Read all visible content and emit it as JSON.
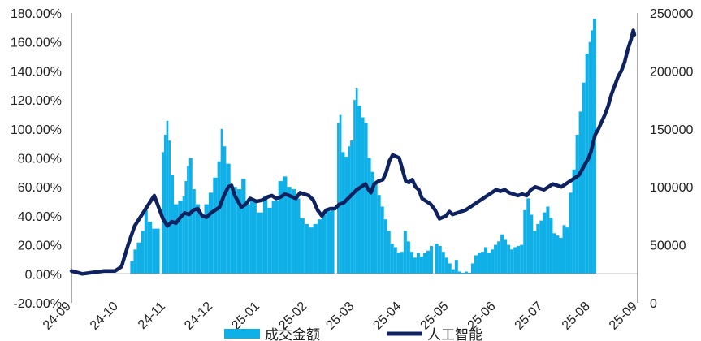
{
  "chart_data": {
    "type": "bar+line",
    "title": "",
    "left_axis": {
      "ylim": [
        -20,
        180
      ],
      "ticks": [
        "-20.00%",
        "0.00%",
        "20.00%",
        "40.00%",
        "60.00%",
        "80.00%",
        "100.00%",
        "120.00%",
        "140.00%",
        "160.00%",
        "180.00%"
      ]
    },
    "right_axis": {
      "ylim": [
        0,
        250000
      ],
      "ticks": [
        "0",
        "50000",
        "100000",
        "150000",
        "200000",
        "250000"
      ]
    },
    "x_ticks": [
      "24-09",
      "24-10",
      "24-11",
      "24-12",
      "25-01",
      "25-02",
      "25-03",
      "25-04",
      "25-05",
      "25-06",
      "25-07",
      "25-08",
      "25-09"
    ],
    "series": [
      {
        "name": "成交金额",
        "type": "bar",
        "axis": "right",
        "color": "#0fb0e8",
        "points": [
          [
            0,
            20000.0
          ],
          [
            0.6,
            19000.0
          ],
          [
            1,
            17000.0
          ],
          [
            1.7,
            0
          ],
          [
            2,
            21000.0
          ],
          [
            2.4,
            24000.0
          ],
          [
            2.7,
            36000.0
          ],
          [
            2.85,
            46000.0
          ],
          [
            3,
            52000.0
          ],
          [
            3.2,
            62000.0
          ],
          [
            3.35,
            80000.0
          ],
          [
            3.5,
            70000.0
          ],
          [
            3.7,
            64000.0
          ],
          [
            4.05,
            0
          ],
          [
            4.15,
            130000.0
          ],
          [
            4.25,
            145000.0
          ],
          [
            4.35,
            157000.0
          ],
          [
            4.45,
            140000.0
          ],
          [
            4.55,
            110000.0
          ],
          [
            4.7,
            85000.0
          ],
          [
            4.9,
            88000.0
          ],
          [
            5.1,
            92000.0
          ],
          [
            5.2,
            105000.0
          ],
          [
            5.3,
            118000.0
          ],
          [
            5.4,
            125000.0
          ],
          [
            5.55,
            98000.0
          ],
          [
            5.7,
            85000.0
          ],
          [
            5.9,
            75000.0
          ],
          [
            6.1,
            85000.0
          ],
          [
            6.3,
            95000.0
          ],
          [
            6.5,
            108000.0
          ],
          [
            6.7,
            122000.0
          ],
          [
            6.85,
            150000.0
          ],
          [
            6.95,
            135000.0
          ],
          [
            7.1,
            120000.0
          ],
          [
            7.3,
            100000.0
          ],
          [
            7.6,
            98000.0
          ],
          [
            7.8,
            107000.0
          ],
          [
            8.0,
            85000.0
          ],
          [
            8.2,
            88000.0
          ],
          [
            8.5,
            78000.0
          ],
          [
            8.8,
            92000.0
          ],
          [
            9.0,
            82000.0
          ],
          [
            9.2,
            88000.0
          ],
          [
            9.5,
            105000.0
          ],
          [
            9.7,
            109000.0
          ],
          [
            9.9,
            100000.0
          ],
          [
            10.1,
            98000.0
          ],
          [
            10.3,
            90000.0
          ],
          [
            10.5,
            73000.0
          ],
          [
            10.7,
            68000.0
          ],
          [
            10.9,
            65000.0
          ],
          [
            11.1,
            68000.0
          ],
          [
            11.3,
            72000.0
          ],
          [
            11.5,
            76000.0
          ],
          [
            11.7,
            79000.0
          ],
          [
            11.9,
            82000.0
          ],
          [
            12.07,
            0
          ],
          [
            12.2,
            155000.0
          ],
          [
            12.3,
            162000.0
          ],
          [
            12.4,
            130000.0
          ],
          [
            12.55,
            126000.0
          ],
          [
            12.7,
            135000.0
          ],
          [
            12.8,
            140000.0
          ],
          [
            12.95,
            175000.0
          ],
          [
            13.05,
            185000.0
          ],
          [
            13.15,
            170000.0
          ],
          [
            13.3,
            160000.0
          ],
          [
            13.45,
            155000.0
          ],
          [
            13.6,
            125000.0
          ],
          [
            13.75,
            113000.0
          ],
          [
            13.9,
            103000.0
          ],
          [
            14.05,
            93000.0
          ],
          [
            14.2,
            83000.0
          ],
          [
            14.35,
            72000.0
          ],
          [
            14.5,
            62000.0
          ],
          [
            14.65,
            51000.0
          ],
          [
            14.8,
            48000.0
          ],
          [
            14.95,
            43000.0
          ],
          [
            15.1,
            44000.0
          ],
          [
            15.25,
            62000.0
          ],
          [
            15.4,
            53000.0
          ],
          [
            15.55,
            44000.0
          ],
          [
            15.7,
            39000.0
          ],
          [
            15.85,
            43000.0
          ],
          [
            16.0,
            40000.0
          ],
          [
            16.15,
            43000.0
          ],
          [
            16.3,
            45000.0
          ],
          [
            16.45,
            49000.0
          ],
          [
            16.6,
            0
          ],
          [
            16.7,
            51000.0
          ],
          [
            16.85,
            49000.0
          ],
          [
            17.0,
            44000.0
          ],
          [
            17.15,
            39000.0
          ],
          [
            17.3,
            34000.0
          ],
          [
            17.45,
            29000.0
          ],
          [
            17.6,
            37000.0
          ],
          [
            17.75,
            27000.0
          ],
          [
            17.9,
            26000.0
          ],
          [
            18.05,
            27000.0
          ],
          [
            18.2,
            26000.0
          ],
          [
            18.35,
            34000.0
          ],
          [
            18.5,
            41000.0
          ],
          [
            18.65,
            43000.0
          ],
          [
            18.8,
            44000.0
          ],
          [
            18.95,
            48000.0
          ],
          [
            19.1,
            43000.0
          ],
          [
            19.25,
            46000.0
          ],
          [
            19.4,
            50000.0
          ],
          [
            19.55,
            53000.0
          ],
          [
            19.7,
            59000.0
          ],
          [
            19.85,
            55000.0
          ],
          [
            20.0,
            50000.0
          ],
          [
            20.15,
            46000.0
          ],
          [
            20.3,
            48000.0
          ],
          [
            20.45,
            49000.0
          ],
          [
            20.6,
            50000.0
          ],
          [
            20.75,
            80000.0
          ],
          [
            20.9,
            90000.0
          ],
          [
            21.05,
            76000.0
          ],
          [
            21.2,
            62000.0
          ],
          [
            21.35,
            68000.0
          ],
          [
            21.5,
            71000.0
          ],
          [
            21.65,
            78000.0
          ],
          [
            21.8,
            83000.0
          ],
          [
            21.95,
            73000.0
          ],
          [
            22.1,
            60000.0
          ],
          [
            22.25,
            58000.0
          ],
          [
            22.4,
            56000.0
          ],
          [
            22.55,
            67000.0
          ],
          [
            22.7,
            65000.0
          ],
          [
            22.85,
            95000.0
          ],
          [
            23.0,
            115000.0
          ],
          [
            23.15,
            145000.0
          ],
          [
            23.3,
            165000.0
          ],
          [
            23.45,
            190000.0
          ],
          [
            23.6,
            215000.0
          ],
          [
            23.75,
            225000.0
          ],
          [
            23.85,
            235000.0
          ],
          [
            23.95,
            245000.0
          ]
        ]
      },
      {
        "name": "人工智能",
        "type": "line",
        "axis": "left",
        "color": "#0f2260",
        "points": [
          [
            0,
            2
          ],
          [
            0.5,
            0
          ],
          [
            1,
            1
          ],
          [
            1.5,
            2
          ],
          [
            2,
            2
          ],
          [
            2.3,
            5
          ],
          [
            2.6,
            20
          ],
          [
            2.9,
            33
          ],
          [
            3.2,
            40
          ],
          [
            3.5,
            47
          ],
          [
            3.8,
            54
          ],
          [
            3.9,
            50
          ],
          [
            4.0,
            46
          ],
          [
            4.2,
            38
          ],
          [
            4.4,
            33
          ],
          [
            4.6,
            36
          ],
          [
            4.8,
            35
          ],
          [
            5.0,
            39
          ],
          [
            5.2,
            42
          ],
          [
            5.4,
            41
          ],
          [
            5.6,
            44
          ],
          [
            5.8,
            45
          ],
          [
            6.0,
            40
          ],
          [
            6.2,
            39
          ],
          [
            6.4,
            42
          ],
          [
            6.6,
            44
          ],
          [
            6.8,
            46
          ],
          [
            7.0,
            54
          ],
          [
            7.2,
            60
          ],
          [
            7.35,
            61
          ],
          [
            7.5,
            54
          ],
          [
            7.65,
            50
          ],
          [
            7.8,
            46
          ],
          [
            8.0,
            48
          ],
          [
            8.2,
            52
          ],
          [
            8.5,
            50
          ],
          [
            8.8,
            51
          ],
          [
            9.0,
            53
          ],
          [
            9.2,
            54
          ],
          [
            9.4,
            52
          ],
          [
            9.6,
            53
          ],
          [
            9.8,
            55
          ],
          [
            10.0,
            54
          ],
          [
            10.3,
            52
          ],
          [
            10.5,
            56
          ],
          [
            10.7,
            55
          ],
          [
            10.9,
            54
          ],
          [
            11.1,
            51
          ],
          [
            11.3,
            44
          ],
          [
            11.5,
            40
          ],
          [
            11.7,
            44
          ],
          [
            11.9,
            45
          ],
          [
            12.1,
            45
          ],
          [
            12.3,
            48
          ],
          [
            12.5,
            49
          ],
          [
            12.7,
            52
          ],
          [
            12.9,
            55
          ],
          [
            13.1,
            58
          ],
          [
            13.3,
            60
          ],
          [
            13.5,
            62
          ],
          [
            13.6,
            59
          ],
          [
            13.75,
            56
          ],
          [
            13.9,
            62
          ],
          [
            14.1,
            64
          ],
          [
            14.3,
            65
          ],
          [
            14.45,
            70
          ],
          [
            14.6,
            78
          ],
          [
            14.75,
            82
          ],
          [
            14.9,
            81
          ],
          [
            15.05,
            80
          ],
          [
            15.2,
            72
          ],
          [
            15.35,
            64
          ],
          [
            15.5,
            63
          ],
          [
            15.65,
            65
          ],
          [
            15.8,
            60
          ],
          [
            15.95,
            58
          ],
          [
            16.1,
            52
          ],
          [
            16.3,
            50
          ],
          [
            16.5,
            48
          ],
          [
            16.7,
            44
          ],
          [
            16.9,
            38
          ],
          [
            17.05,
            39
          ],
          [
            17.2,
            40
          ],
          [
            17.35,
            43
          ],
          [
            17.5,
            41
          ],
          [
            17.7,
            42
          ],
          [
            17.9,
            43
          ],
          [
            18.1,
            44
          ],
          [
            18.3,
            46
          ],
          [
            18.5,
            48
          ],
          [
            18.7,
            50
          ],
          [
            18.9,
            52
          ],
          [
            19.1,
            54
          ],
          [
            19.3,
            56
          ],
          [
            19.5,
            58
          ],
          [
            19.7,
            57
          ],
          [
            19.9,
            58
          ],
          [
            20.1,
            56
          ],
          [
            20.3,
            55
          ],
          [
            20.5,
            54
          ],
          [
            20.7,
            55
          ],
          [
            20.9,
            54
          ],
          [
            21.1,
            58
          ],
          [
            21.3,
            60
          ],
          [
            21.5,
            59
          ],
          [
            21.7,
            58
          ],
          [
            21.9,
            60
          ],
          [
            22.1,
            62
          ],
          [
            22.3,
            61
          ],
          [
            22.5,
            60
          ],
          [
            22.7,
            62
          ],
          [
            22.9,
            64
          ],
          [
            23.1,
            66
          ],
          [
            23.3,
            68
          ],
          [
            23.45,
            72
          ],
          [
            23.6,
            76
          ],
          [
            23.75,
            80
          ],
          [
            23.85,
            84
          ],
          [
            23.95,
            90
          ],
          [
            24.05,
            96
          ],
          [
            24.2,
            100
          ],
          [
            24.35,
            105
          ],
          [
            24.5,
            110
          ],
          [
            24.65,
            116
          ],
          [
            24.8,
            124
          ],
          [
            24.95,
            130
          ],
          [
            25.1,
            136
          ],
          [
            25.25,
            140
          ],
          [
            25.4,
            146
          ],
          [
            25.55,
            155
          ],
          [
            25.7,
            162
          ],
          [
            25.8,
            168
          ],
          [
            25.85,
            165
          ]
        ]
      }
    ],
    "legend": {
      "position": "bottom",
      "items": [
        "成交金额",
        "人工智能"
      ]
    }
  }
}
